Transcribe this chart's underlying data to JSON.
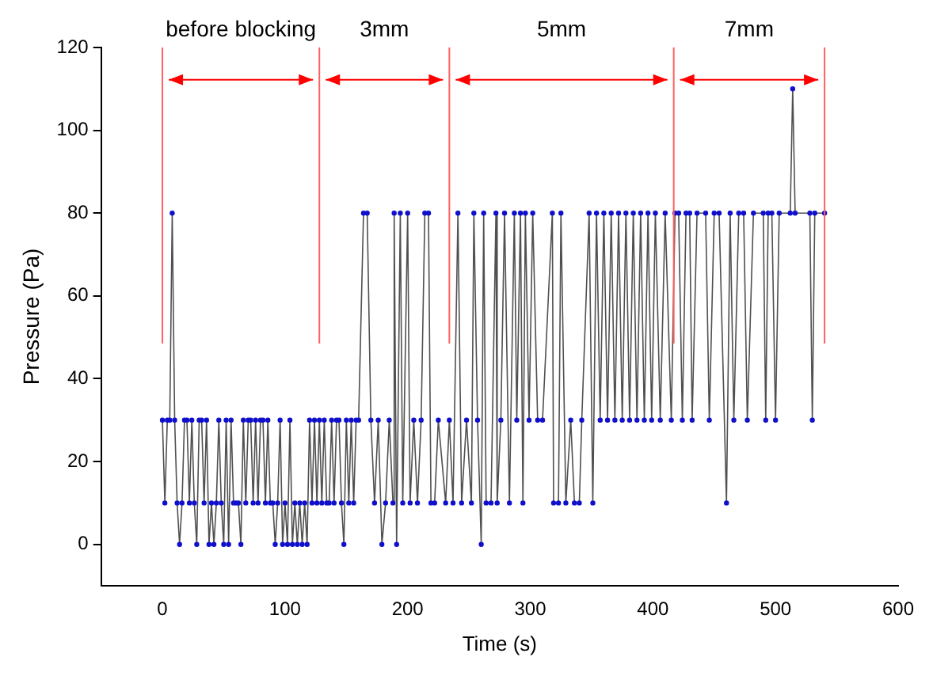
{
  "chart_data": {
    "type": "line",
    "xlabel": "Time (s)",
    "ylabel": "Pressure (Pa)",
    "xlim": [
      -50,
      600
    ],
    "xticks": [
      0,
      100,
      200,
      300,
      400,
      500,
      600
    ],
    "ylim": [
      -10,
      120
    ],
    "yticks": [
      0,
      20,
      40,
      60,
      80,
      100,
      120
    ],
    "grid": false,
    "legend": false,
    "marker": "circle",
    "line_style": "solid",
    "series": [
      {
        "color": "#1010cc",
        "x": [
          0,
          2,
          4,
          6,
          8,
          10,
          12,
          14,
          16,
          18,
          20,
          22,
          24,
          26,
          28,
          30,
          32,
          34,
          36,
          38,
          40,
          42,
          44,
          46,
          48,
          50,
          52,
          54,
          56,
          58,
          60,
          62,
          64,
          66,
          68,
          70,
          72,
          74,
          76,
          78,
          80,
          82,
          84,
          86,
          88,
          90,
          92,
          94,
          96,
          98,
          100,
          102,
          104,
          106,
          108,
          110,
          112,
          114,
          116,
          118,
          120,
          122,
          124,
          126,
          128,
          130,
          132,
          134,
          136,
          138,
          140,
          142,
          144,
          146,
          148,
          150,
          152,
          154,
          156,
          158,
          160,
          164,
          167,
          170,
          173,
          176,
          179,
          182,
          185,
          188,
          189,
          191,
          194,
          196,
          200,
          202,
          205,
          208,
          211,
          214,
          217,
          219,
          222,
          225,
          231,
          234,
          237,
          241,
          244,
          248,
          252,
          254,
          257,
          260,
          262,
          264,
          268,
          272,
          273,
          276,
          279,
          283,
          287,
          289,
          292,
          294,
          296,
          299,
          302,
          306,
          310,
          318,
          319,
          323,
          325,
          329,
          333,
          336,
          340,
          342,
          348,
          351,
          354,
          357,
          360,
          363,
          366,
          369,
          372,
          375,
          378,
          381,
          384,
          387,
          390,
          393,
          396,
          399,
          402,
          406,
          410,
          415,
          418,
          421,
          424,
          427,
          430,
          432,
          436,
          443,
          446,
          450,
          454,
          460,
          463,
          466,
          470,
          474,
          477,
          482,
          490,
          492,
          494,
          497,
          500,
          503,
          512,
          514,
          516,
          528,
          530,
          532,
          540
        ],
        "values": [
          30,
          10,
          30,
          30,
          80,
          30,
          10,
          0,
          10,
          30,
          30,
          10,
          30,
          10,
          0,
          30,
          30,
          10,
          30,
          0,
          10,
          0,
          10,
          30,
          10,
          0,
          30,
          0,
          30,
          10,
          10,
          10,
          0,
          30,
          10,
          30,
          30,
          10,
          30,
          10,
          30,
          30,
          10,
          30,
          10,
          10,
          0,
          10,
          30,
          0,
          10,
          0,
          30,
          0,
          10,
          0,
          10,
          0,
          10,
          0,
          30,
          10,
          30,
          10,
          30,
          10,
          30,
          10,
          10,
          30,
          10,
          30,
          30,
          10,
          0,
          30,
          10,
          30,
          10,
          30,
          30,
          80,
          80,
          30,
          10,
          30,
          0,
          10,
          30,
          10,
          80,
          0,
          80,
          10,
          80,
          10,
          30,
          10,
          30,
          80,
          80,
          10,
          10,
          30,
          10,
          30,
          10,
          80,
          10,
          30,
          10,
          80,
          30,
          0,
          80,
          10,
          10,
          80,
          10,
          30,
          80,
          10,
          80,
          30,
          80,
          10,
          80,
          30,
          80,
          30,
          30,
          80,
          10,
          10,
          80,
          10,
          30,
          10,
          10,
          30,
          80,
          10,
          80,
          30,
          80,
          30,
          80,
          30,
          80,
          30,
          80,
          30,
          80,
          30,
          80,
          30,
          80,
          30,
          80,
          30,
          80,
          30,
          80,
          80,
          30,
          80,
          80,
          30,
          80,
          80,
          30,
          80,
          80,
          10,
          80,
          30,
          80,
          80,
          30,
          80,
          80,
          30,
          80,
          80,
          30,
          80,
          80,
          110,
          80,
          80,
          30,
          80,
          80
        ]
      }
    ],
    "ref_lines": [
      {
        "axis": "x",
        "value": 0,
        "color": "#ff6060"
      },
      {
        "axis": "x",
        "value": 128,
        "color": "#ff6060"
      },
      {
        "axis": "x",
        "value": 234,
        "color": "#ff6060"
      },
      {
        "axis": "x",
        "value": 417,
        "color": "#ff6060"
      },
      {
        "axis": "x",
        "value": 540,
        "color": "#ff6060"
      }
    ],
    "annotations": [
      "before blocking",
      "3mm",
      "5mm",
      "7mm"
    ]
  }
}
